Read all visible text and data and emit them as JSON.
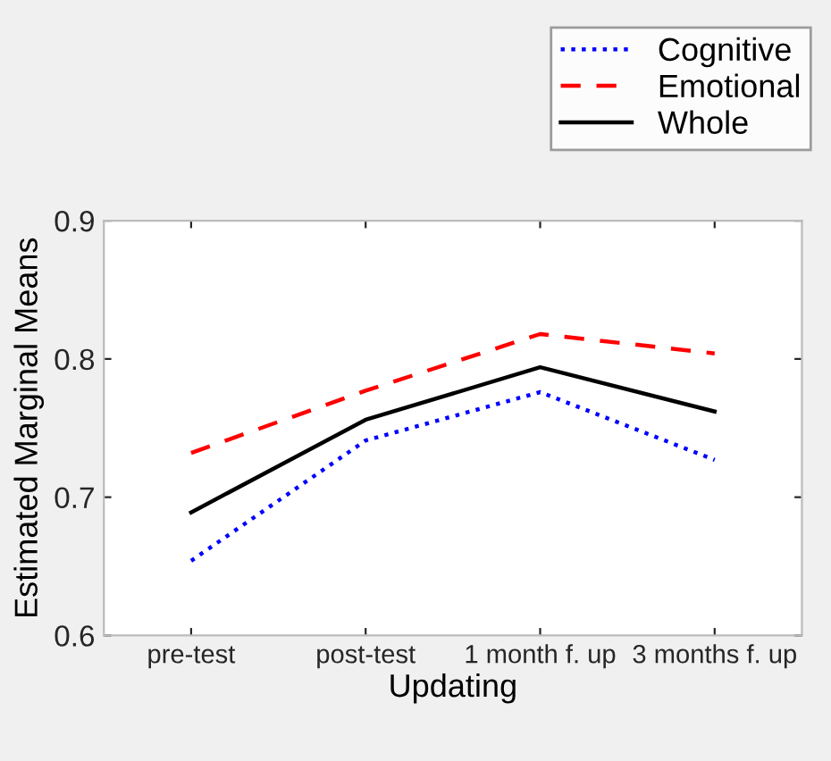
{
  "chart_data": {
    "type": "line",
    "xlabel": "Updating",
    "ylabel": "Estimated Marginal Means",
    "categories": [
      "pre-test",
      "post-test",
      "1 month f. up",
      "3 months f. up"
    ],
    "series": [
      {
        "name": "Cognitive",
        "color": "#0000ff",
        "line_style": "dotted",
        "values": [
          0.654,
          0.741,
          0.776,
          0.727
        ]
      },
      {
        "name": "Emotional",
        "color": "#ff0000",
        "line_style": "dashed",
        "values": [
          0.732,
          0.777,
          0.818,
          0.804
        ]
      },
      {
        "name": "Whole",
        "color": "#000000",
        "line_style": "solid",
        "values": [
          0.689,
          0.756,
          0.794,
          0.762
        ]
      }
    ],
    "ylim": [
      0.6,
      0.9
    ],
    "yticks": [
      0.6,
      0.7,
      0.8,
      0.9
    ],
    "grid": false,
    "legend": "top right",
    "marker": "none"
  }
}
